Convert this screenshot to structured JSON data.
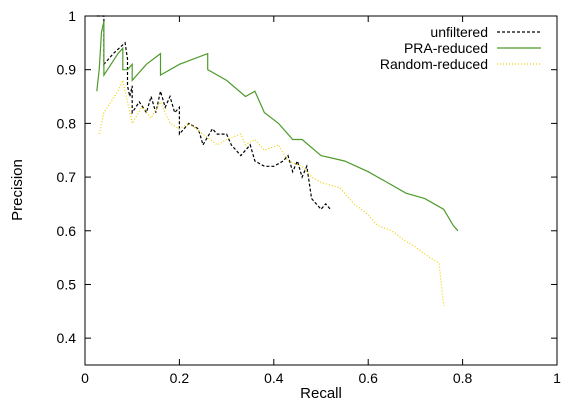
{
  "chart_data": {
    "type": "line",
    "title": "",
    "xlabel": "Recall",
    "ylabel": "Precision",
    "xlim": [
      0,
      1
    ],
    "ylim": [
      0.35,
      1
    ],
    "x_ticks": [
      "0",
      "0.2",
      "0.4",
      "0.6",
      "0.8",
      "1"
    ],
    "y_ticks": [
      "0.4",
      "0.5",
      "0.6",
      "0.7",
      "0.8",
      "0.9",
      "1"
    ],
    "grid": false,
    "legend_position": "top-right",
    "series": [
      {
        "name": "unfiltered",
        "color": "#000000",
        "style": "dashed",
        "points": [
          [
            0.025,
            1.0
          ],
          [
            0.04,
            1.0
          ],
          [
            0.04,
            0.91
          ],
          [
            0.06,
            0.93
          ],
          [
            0.085,
            0.95
          ],
          [
            0.09,
            0.92
          ],
          [
            0.09,
            0.87
          ],
          [
            0.095,
            0.85
          ],
          [
            0.1,
            0.87
          ],
          [
            0.1,
            0.82
          ],
          [
            0.115,
            0.84
          ],
          [
            0.13,
            0.82
          ],
          [
            0.14,
            0.85
          ],
          [
            0.15,
            0.82
          ],
          [
            0.16,
            0.86
          ],
          [
            0.17,
            0.83
          ],
          [
            0.18,
            0.85
          ],
          [
            0.19,
            0.82
          ],
          [
            0.2,
            0.83
          ],
          [
            0.2,
            0.78
          ],
          [
            0.22,
            0.8
          ],
          [
            0.24,
            0.79
          ],
          [
            0.25,
            0.76
          ],
          [
            0.27,
            0.79
          ],
          [
            0.28,
            0.78
          ],
          [
            0.3,
            0.78
          ],
          [
            0.31,
            0.76
          ],
          [
            0.33,
            0.74
          ],
          [
            0.35,
            0.76
          ],
          [
            0.36,
            0.73
          ],
          [
            0.38,
            0.72
          ],
          [
            0.4,
            0.72
          ],
          [
            0.42,
            0.73
          ],
          [
            0.43,
            0.74
          ],
          [
            0.44,
            0.71
          ],
          [
            0.45,
            0.73
          ],
          [
            0.46,
            0.7
          ],
          [
            0.47,
            0.72
          ],
          [
            0.48,
            0.66
          ],
          [
            0.49,
            0.65
          ],
          [
            0.5,
            0.64
          ],
          [
            0.51,
            0.65
          ],
          [
            0.52,
            0.64
          ]
        ]
      },
      {
        "name": "PRA-reduced",
        "color": "#4f9a2a",
        "style": "solid",
        "points": [
          [
            0.025,
            0.86
          ],
          [
            0.03,
            0.9
          ],
          [
            0.035,
            0.97
          ],
          [
            0.04,
            0.99
          ],
          [
            0.04,
            0.89
          ],
          [
            0.07,
            0.93
          ],
          [
            0.08,
            0.94
          ],
          [
            0.08,
            0.9
          ],
          [
            0.09,
            0.9
          ],
          [
            0.1,
            0.91
          ],
          [
            0.1,
            0.88
          ],
          [
            0.13,
            0.91
          ],
          [
            0.16,
            0.93
          ],
          [
            0.16,
            0.89
          ],
          [
            0.2,
            0.91
          ],
          [
            0.26,
            0.93
          ],
          [
            0.26,
            0.9
          ],
          [
            0.3,
            0.88
          ],
          [
            0.34,
            0.85
          ],
          [
            0.36,
            0.86
          ],
          [
            0.38,
            0.82
          ],
          [
            0.41,
            0.8
          ],
          [
            0.44,
            0.77
          ],
          [
            0.46,
            0.77
          ],
          [
            0.5,
            0.74
          ],
          [
            0.55,
            0.73
          ],
          [
            0.6,
            0.71
          ],
          [
            0.64,
            0.69
          ],
          [
            0.68,
            0.67
          ],
          [
            0.72,
            0.66
          ],
          [
            0.76,
            0.64
          ],
          [
            0.78,
            0.61
          ],
          [
            0.79,
            0.6
          ]
        ]
      },
      {
        "name": "Random-reduced",
        "color": "#f0d000",
        "style": "dotted",
        "points": [
          [
            0.03,
            0.78
          ],
          [
            0.04,
            0.82
          ],
          [
            0.07,
            0.86
          ],
          [
            0.08,
            0.88
          ],
          [
            0.09,
            0.84
          ],
          [
            0.1,
            0.8
          ],
          [
            0.12,
            0.83
          ],
          [
            0.14,
            0.81
          ],
          [
            0.16,
            0.84
          ],
          [
            0.18,
            0.8
          ],
          [
            0.2,
            0.79
          ],
          [
            0.22,
            0.8
          ],
          [
            0.25,
            0.78
          ],
          [
            0.28,
            0.76
          ],
          [
            0.3,
            0.77
          ],
          [
            0.33,
            0.78
          ],
          [
            0.34,
            0.76
          ],
          [
            0.36,
            0.77
          ],
          [
            0.38,
            0.75
          ],
          [
            0.41,
            0.76
          ],
          [
            0.43,
            0.73
          ],
          [
            0.46,
            0.72
          ],
          [
            0.48,
            0.7
          ],
          [
            0.5,
            0.69
          ],
          [
            0.54,
            0.68
          ],
          [
            0.57,
            0.65
          ],
          [
            0.6,
            0.63
          ],
          [
            0.62,
            0.61
          ],
          [
            0.65,
            0.6
          ],
          [
            0.68,
            0.58
          ],
          [
            0.7,
            0.57
          ],
          [
            0.73,
            0.55
          ],
          [
            0.75,
            0.54
          ],
          [
            0.755,
            0.5
          ],
          [
            0.76,
            0.46
          ]
        ]
      }
    ]
  }
}
